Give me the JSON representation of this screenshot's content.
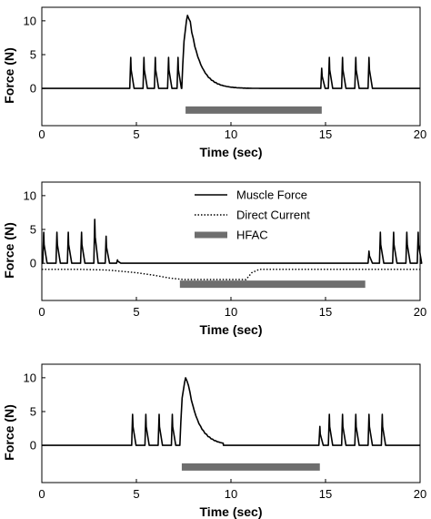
{
  "chart_data": [
    {
      "type": "line",
      "xlabel": "Time (sec)",
      "ylabel": "Force (N)",
      "xlim": [
        0,
        20
      ],
      "ylim": [
        -5.5,
        12
      ],
      "xticks": [
        0,
        5,
        10,
        15,
        20
      ],
      "yticks": [
        0,
        5,
        10
      ],
      "grid": false,
      "series": [
        {
          "style": "solid",
          "twitches": [
            [
              4.7,
              4.6
            ],
            [
              5.4,
              4.6
            ],
            [
              6.0,
              4.6
            ],
            [
              6.7,
              4.6
            ],
            [
              7.2,
              4.6
            ],
            [
              14.8,
              3.0
            ],
            [
              15.2,
              4.6
            ],
            [
              15.9,
              4.6
            ],
            [
              16.6,
              4.6
            ],
            [
              17.3,
              4.6
            ]
          ],
          "peak": {
            "start": 7.4,
            "rise_end": 7.7,
            "peak_value": 10.8,
            "decay_to": 13.5
          }
        }
      ],
      "bar": {
        "x_start": 7.6,
        "x_end": 14.8,
        "y": -3.2,
        "color": "#6e6e6e"
      }
    },
    {
      "type": "line",
      "xlabel": "Time (sec)",
      "ylabel": "Force (N)",
      "xlim": [
        0,
        20
      ],
      "ylim": [
        -5.5,
        12
      ],
      "xticks": [
        0,
        5,
        10,
        15,
        20
      ],
      "yticks": [
        0,
        5,
        10
      ],
      "grid": false,
      "legend": {
        "placement": "top-center",
        "entries": [
          {
            "label": "Muscle Force",
            "style": "solid"
          },
          {
            "label": "Direct Current",
            "style": "dotted"
          },
          {
            "label": "HFAC",
            "style": "bar"
          }
        ]
      },
      "series": [
        {
          "name": "Muscle Force",
          "style": "solid",
          "twitches": [
            [
              0.1,
              4.6
            ],
            [
              0.8,
              4.6
            ],
            [
              1.4,
              4.6
            ],
            [
              2.1,
              4.6
            ],
            [
              2.8,
              6.5
            ],
            [
              3.4,
              4.0
            ],
            [
              4.0,
              0.5
            ],
            [
              17.3,
              1.8
            ],
            [
              17.9,
              4.6
            ],
            [
              18.6,
              4.6
            ],
            [
              19.3,
              4.6
            ],
            [
              19.9,
              4.6
            ]
          ]
        },
        {
          "name": "Direct Current",
          "style": "dotted",
          "points": [
            [
              0,
              -0.9
            ],
            [
              2.0,
              -0.9
            ],
            [
              3.5,
              -1.0
            ],
            [
              5.0,
              -1.4
            ],
            [
              6.0,
              -1.8
            ],
            [
              6.8,
              -2.2
            ],
            [
              7.5,
              -2.4
            ],
            [
              10.8,
              -2.4
            ],
            [
              11.1,
              -1.4
            ],
            [
              11.5,
              -0.9
            ],
            [
              20,
              -0.9
            ]
          ]
        }
      ],
      "bar": {
        "x_start": 7.3,
        "x_end": 17.1,
        "y": -3.1,
        "color": "#6e6e6e"
      }
    },
    {
      "type": "line",
      "xlabel": "Time (sec)",
      "ylabel": "Force (N)",
      "xlim": [
        0,
        20
      ],
      "ylim": [
        -5.5,
        12
      ],
      "xticks": [
        0,
        5,
        10,
        15,
        20
      ],
      "yticks": [
        0,
        5,
        10
      ],
      "grid": false,
      "series": [
        {
          "style": "solid",
          "twitches": [
            [
              4.8,
              4.6
            ],
            [
              5.5,
              4.6
            ],
            [
              6.2,
              4.6
            ],
            [
              6.9,
              4.6
            ],
            [
              14.7,
              2.8
            ],
            [
              15.2,
              4.6
            ],
            [
              15.9,
              4.6
            ],
            [
              16.6,
              4.6
            ],
            [
              17.3,
              4.6
            ],
            [
              18.0,
              4.6
            ]
          ],
          "peak": {
            "start": 7.3,
            "rise_end": 7.6,
            "peak_value": 10.0,
            "decay_to": 9.6
          }
        }
      ],
      "bar": {
        "x_start": 7.4,
        "x_end": 14.7,
        "y": -3.2,
        "color": "#6e6e6e"
      }
    }
  ]
}
